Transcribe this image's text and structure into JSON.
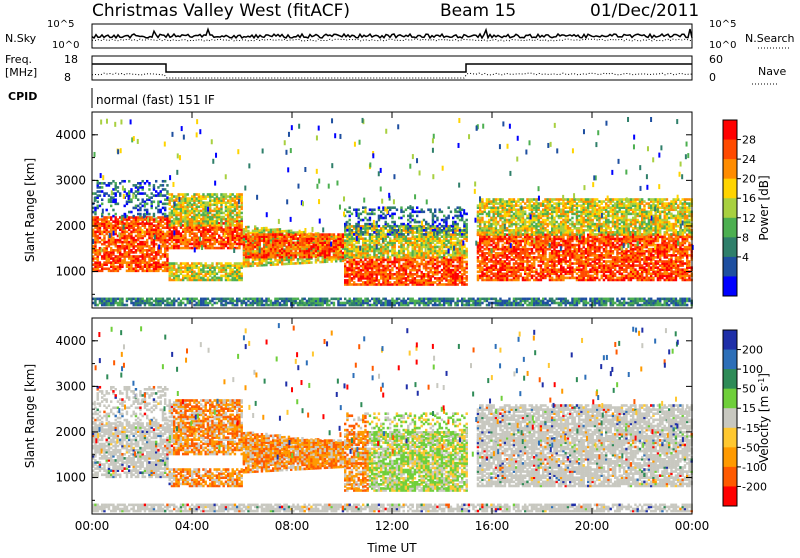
{
  "header": {
    "station": "Christmas Valley West (fitACF)",
    "beam": "Beam 15",
    "date": "01/Dec/2011"
  },
  "panels": {
    "nsky": {
      "label": "N.Sky",
      "tick_hi": "10^5",
      "tick_lo": "10^0",
      "right_label": "N.Search",
      "right_tick_hi": "10^5",
      "right_tick_lo": "10^0"
    },
    "freq": {
      "label1": "Freq.",
      "label2": "[MHz]",
      "tick_hi": "18",
      "tick_lo": "8",
      "right_label": "Nave",
      "right_tick_hi": "60",
      "right_tick_lo": "0"
    },
    "cpid": {
      "label": "CPID",
      "text": "normal (fast) 151 IF"
    }
  },
  "chart_data": [
    {
      "type": "heatmap",
      "name": "power",
      "ylabel": "Slant Range [km]",
      "xlabel": "Time UT",
      "x_ticks": [
        "00:00",
        "04:00",
        "08:00",
        "12:00",
        "16:00",
        "20:00",
        "00:00"
      ],
      "y_ticks": [
        "1000",
        "2000",
        "3000",
        "4000"
      ],
      "ylim": [
        200,
        4500
      ],
      "colorbar": {
        "label": "Power [dB]",
        "ticks": [
          "28",
          "24",
          "20",
          "16",
          "12",
          "8",
          "4"
        ],
        "colors": [
          "#ff0000",
          "#ff4a00",
          "#ff8c00",
          "#ffd400",
          "#a8d040",
          "#4caf50",
          "#2f7f6a",
          "#1e4fa0",
          "#0000ff"
        ]
      }
    },
    {
      "type": "heatmap",
      "name": "velocity",
      "ylabel": "Slant Range [km]",
      "xlabel": "Time UT",
      "x_ticks": [
        "00:00",
        "04:00",
        "08:00",
        "12:00",
        "16:00",
        "20:00",
        "00:00"
      ],
      "y_ticks": [
        "1000",
        "2000",
        "3000",
        "4000"
      ],
      "ylim": [
        200,
        4500
      ],
      "colorbar": {
        "label": "Velocity [m s^-1]",
        "ticks": [
          "200",
          "100",
          "50",
          "15",
          "-15",
          "-50",
          "-100",
          "-200"
        ],
        "colors": [
          "#1f2fa8",
          "#2d6fb8",
          "#2e8b57",
          "#6fcf3a",
          "#c8c8c0",
          "#ffc830",
          "#ff9a00",
          "#ff5a00",
          "#ff0000"
        ]
      }
    }
  ],
  "x_axis_title": "Time UT"
}
